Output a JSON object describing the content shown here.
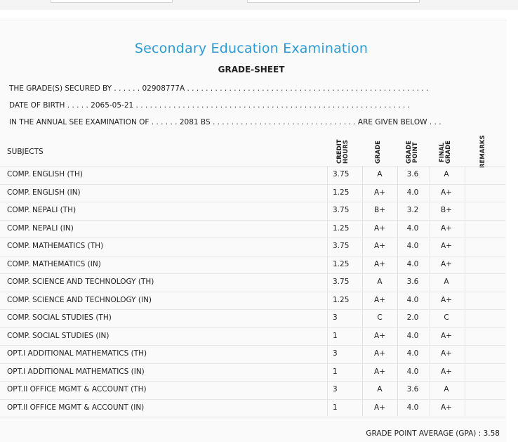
{
  "header": {
    "title": "Secondary Education Examination",
    "subtitle": "GRADE-SHEET"
  },
  "info": {
    "secured_prefix": "THE GRADE(S) SECURED BY . . . . . .",
    "symbol_no": "02908777A",
    "secured_dots": ". . . . . . . . . . . . . . . . . . . . . . . . . . . . . . . . . . . . . . . . . . . . . . . . . . . .",
    "dob_prefix": "DATE OF BIRTH . . . . .",
    "dob": "2065-05-21",
    "dob_dots": ". . . . . . . . . . . . . . . . . . . . . . . . . . . . . . . . . . . . . . . . . . . . . . . . . . . . . . . . . . .",
    "exam_prefix": "IN THE ANNUAL SEE EXAMINATION OF . . . . . .",
    "exam_year": "2081 BS",
    "exam_dots": ". . . . . . . . . . . . . . . . . . . . . . . . . . . . . . .",
    "exam_suffix": "ARE GIVEN BELOW . . ."
  },
  "table": {
    "headers": {
      "subjects": "SUBJECTS",
      "credit_hours": "CREDIT\nHOURS",
      "grade": "GRADE",
      "grade_point": "GRADE\nPOINT",
      "final_grade": "FINAL\nGRADE",
      "remarks": "REMARKS"
    },
    "rows": [
      {
        "subject": "COMP. ENGLISH (TH)",
        "credit": "3.75",
        "grade": "A",
        "point": "3.6",
        "final": "A"
      },
      {
        "subject": "COMP. ENGLISH (IN)",
        "credit": "1.25",
        "grade": "A+",
        "point": "4.0",
        "final": "A+"
      },
      {
        "subject": "COMP. NEPALI (TH)",
        "credit": "3.75",
        "grade": "B+",
        "point": "3.2",
        "final": "B+"
      },
      {
        "subject": "COMP. NEPALI (IN)",
        "credit": "1.25",
        "grade": "A+",
        "point": "4.0",
        "final": "A+"
      },
      {
        "subject": "COMP. MATHEMATICS (TH)",
        "credit": "3.75",
        "grade": "A+",
        "point": "4.0",
        "final": "A+"
      },
      {
        "subject": "COMP. MATHEMATICS (IN)",
        "credit": "1.25",
        "grade": "A+",
        "point": "4.0",
        "final": "A+"
      },
      {
        "subject": "COMP. SCIENCE AND TECHNOLOGY (TH)",
        "credit": "3.75",
        "grade": "A",
        "point": "3.6",
        "final": "A"
      },
      {
        "subject": "COMP. SCIENCE AND TECHNOLOGY (IN)",
        "credit": "1.25",
        "grade": "A+",
        "point": "4.0",
        "final": "A+"
      },
      {
        "subject": "COMP. SOCIAL STUDIES (TH)",
        "credit": "3",
        "grade": "C",
        "point": "2.0",
        "final": "C"
      },
      {
        "subject": "COMP. SOCIAL STUDIES (IN)",
        "credit": "1",
        "grade": "A+",
        "point": "4.0",
        "final": "A+"
      },
      {
        "subject": "OPT.I ADDITIONAL MATHEMATICS (TH)",
        "credit": "3",
        "grade": "A+",
        "point": "4.0",
        "final": "A+"
      },
      {
        "subject": "OPT.I ADDITIONAL MATHEMATICS (IN)",
        "credit": "1",
        "grade": "A+",
        "point": "4.0",
        "final": "A+"
      },
      {
        "subject": "OPT.II OFFICE MGMT & ACCOUNT (TH)",
        "credit": "3",
        "grade": "A",
        "point": "3.6",
        "final": "A"
      },
      {
        "subject": "OPT.II OFFICE MGMT & ACCOUNT (IN)",
        "credit": "1",
        "grade": "A+",
        "point": "4.0",
        "final": "A+"
      }
    ]
  },
  "footer": {
    "gpa_label": "GRADE POINT AVERAGE (GPA) :",
    "gpa_value": "3.58"
  },
  "colors": {
    "title": "#2a9bd6"
  }
}
